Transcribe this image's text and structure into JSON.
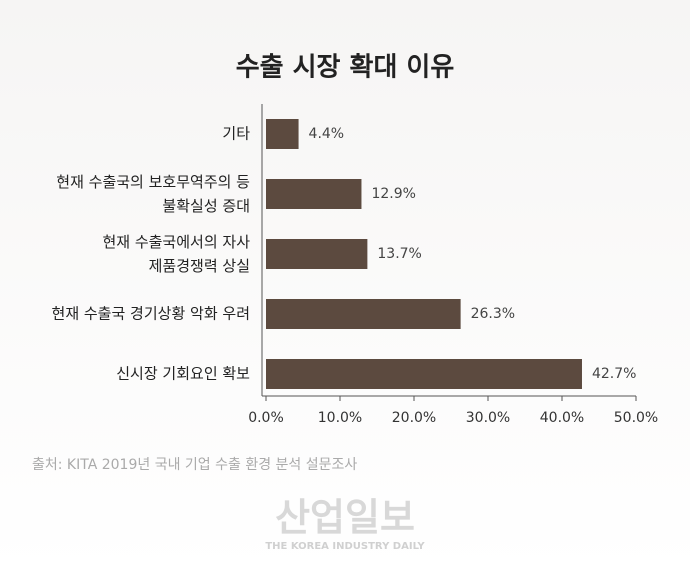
{
  "chart_data": {
    "type": "barh",
    "title": "수출 시장 확대 이유",
    "categories": [
      "기타",
      "현재 수출국의 보호무역주의 등\n불확실성 증대",
      "현재 수출국에서의 자사\n제품경쟁력 상실",
      "현재 수출국 경기상황 악화 우려",
      "신시장 기회요인 확보"
    ],
    "values": [
      4.4,
      12.9,
      13.7,
      26.3,
      42.7
    ],
    "value_labels": [
      "4.4%",
      "12.9%",
      "13.7%",
      "26.3%",
      "42.7%"
    ],
    "color": "#5c4a3f",
    "xlim": [
      0,
      50
    ],
    "xticks": [
      {
        "value": 0,
        "label": "0.0%"
      },
      {
        "value": 10,
        "label": "10.0%"
      },
      {
        "value": 20,
        "label": "20.0%"
      },
      {
        "value": 30,
        "label": "30.0%"
      },
      {
        "value": 40,
        "label": "40.0%"
      },
      {
        "value": 50,
        "label": "50.0%"
      }
    ],
    "source": "출처: KITA 2019년 국내 기업 수출 환경 분석 설문조사",
    "watermark": "산업일보",
    "watermark_subtitle": "THE KOREA INDUSTRY DAILY"
  }
}
